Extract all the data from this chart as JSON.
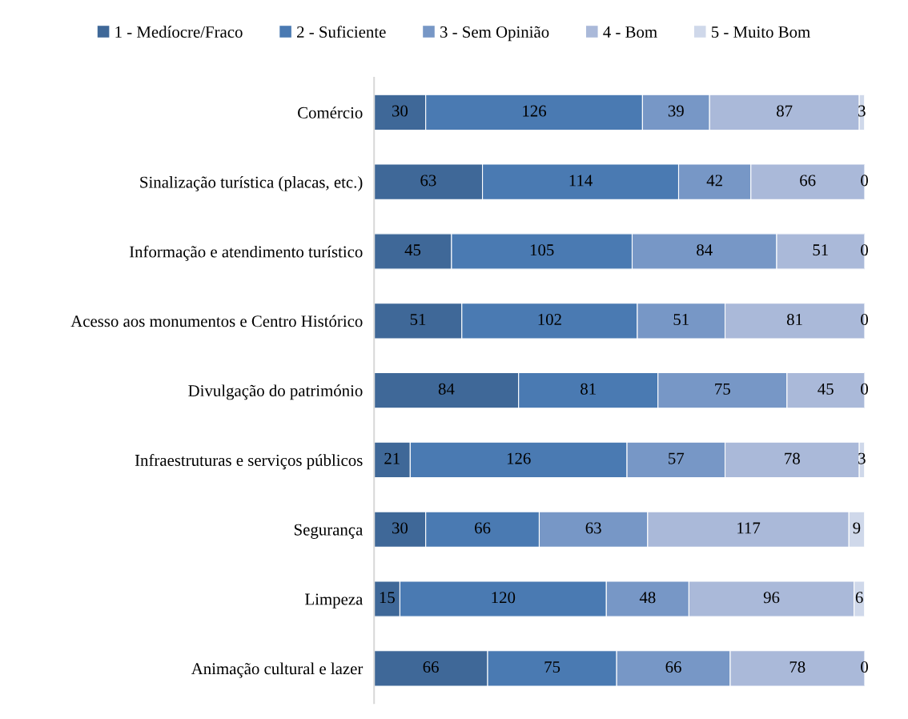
{
  "chart_data": {
    "type": "bar",
    "orientation": "horizontal",
    "stacked": true,
    "data_labels": true,
    "legend": "top",
    "grid": false,
    "categories": [
      "Comércio",
      "Sinalização turística (placas, etc.)",
      "Informação e atendimento turístico",
      "Acesso aos monumentos e Centro Histórico",
      "Divulgação do património",
      "Infraestruturas e serviços públicos",
      "Segurança",
      "Limpeza",
      "Animação cultural e lazer"
    ],
    "series": [
      {
        "name": "1 - Medíocre/Fraco",
        "color": "#3f6898",
        "values": [
          30,
          63,
          45,
          51,
          84,
          21,
          30,
          15,
          66
        ]
      },
      {
        "name": "2 - Suficiente",
        "color": "#4a7ab2",
        "values": [
          126,
          114,
          105,
          102,
          81,
          126,
          66,
          120,
          75
        ]
      },
      {
        "name": "3 - Sem Opinião",
        "color": "#7797c6",
        "values": [
          39,
          42,
          84,
          51,
          75,
          57,
          63,
          48,
          66
        ]
      },
      {
        "name": "4 - Bom",
        "color": "#aab9d9",
        "values": [
          87,
          66,
          51,
          81,
          45,
          78,
          117,
          96,
          78
        ]
      },
      {
        "name": "5 - Muito Bom",
        "color": "#cfd8ea",
        "values": [
          3,
          0,
          0,
          0,
          0,
          3,
          9,
          6,
          0
        ]
      }
    ]
  }
}
